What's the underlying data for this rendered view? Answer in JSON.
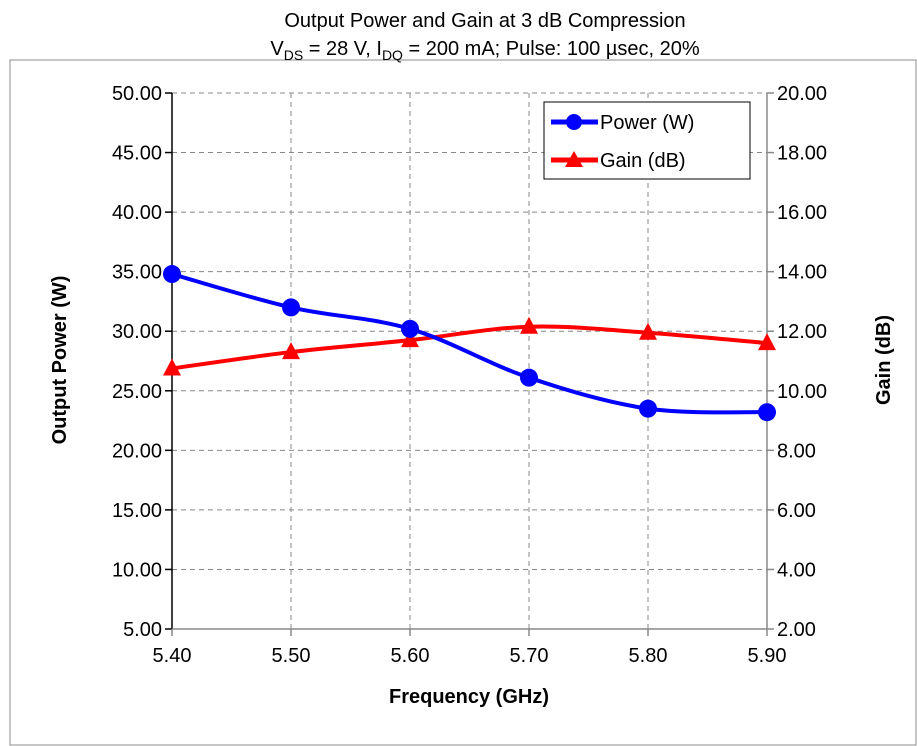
{
  "chart_data": {
    "type": "line",
    "title": "Output Power and Gain at 3 dB Compression",
    "subtitle": {
      "parts": [
        {
          "text": "V",
          "sub": false
        },
        {
          "text": "DS",
          "sub": true
        },
        {
          "text": " = 28 V, I",
          "sub": false
        },
        {
          "text": "DQ",
          "sub": true
        },
        {
          "text": " = 200 mA; Pulse: 100 µsec, 20%",
          "sub": false
        }
      ]
    },
    "xlabel": "Frequency (GHz)",
    "ylabel": "Output Power (W)",
    "y2label": "Gain (dB)",
    "xlim": [
      5.4,
      5.9
    ],
    "ylim": [
      5,
      50
    ],
    "y2lim": [
      2,
      20
    ],
    "x_ticks": [
      "5.40",
      "5.50",
      "5.60",
      "5.70",
      "5.80",
      "5.90"
    ],
    "y_ticks": [
      "5.00",
      "10.00",
      "15.00",
      "20.00",
      "25.00",
      "30.00",
      "35.00",
      "40.00",
      "45.00",
      "50.00"
    ],
    "y2_ticks": [
      "2.00",
      "4.00",
      "6.00",
      "8.00",
      "10.00",
      "12.00",
      "14.00",
      "16.00",
      "18.00",
      "20.00"
    ],
    "grid": true,
    "legend_position": "top-right",
    "series": [
      {
        "name": "Power (W)",
        "axis": "left",
        "marker": "circle",
        "color": "#0000ff",
        "x": [
          5.4,
          5.5,
          5.6,
          5.7,
          5.8,
          5.9
        ],
        "values": [
          34.8,
          32.0,
          30.2,
          26.1,
          23.5,
          23.2
        ]
      },
      {
        "name": "Gain (dB)",
        "axis": "right",
        "marker": "triangle",
        "color": "#ff0000",
        "x": [
          5.4,
          5.5,
          5.6,
          5.7,
          5.8,
          5.9
        ],
        "values": [
          10.75,
          11.3,
          11.7,
          12.15,
          11.95,
          11.6
        ]
      }
    ]
  }
}
